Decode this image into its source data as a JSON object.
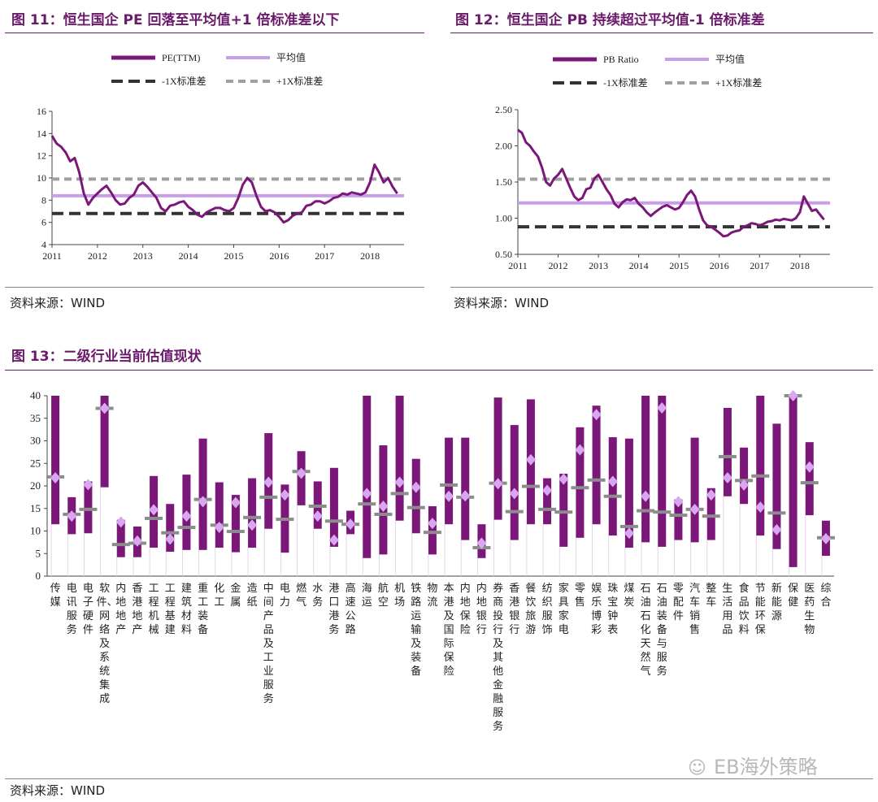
{
  "fig11": {
    "title": "图 11：恒生国企 PE 回落至平均值+1 倍标准差以下",
    "source": "资料来源：WIND",
    "legend": [
      "PE(TTM)",
      "平均值",
      "-1X标准差",
      "+1X标准差"
    ]
  },
  "fig12": {
    "title": "图 12：恒生国企 PB 持续超过平均值-1 倍标准差",
    "source": "资料来源：WIND",
    "legend": [
      "PB Ratio",
      "平均值",
      "-1X标准差",
      "+1X标准差"
    ]
  },
  "fig13": {
    "title": "图 13：二级行业当前估值现状",
    "source": "资料来源：WIND",
    "watermark": "EB海外策略"
  },
  "colors": {
    "accent": "#6b1a6b",
    "series": "#7a1779",
    "mean": "#c79ee8",
    "sd_low": "#333333",
    "sd_high": "#a0a0a0",
    "current": "#d9a6f0",
    "median": "#8c8c8c"
  },
  "chart_data": [
    {
      "type": "line",
      "series": [
        {
          "name": "PE(TTM)",
          "points": [
            [
              2011.0,
              13.8
            ],
            [
              2011.1,
              13.1
            ],
            [
              2011.2,
              12.8
            ],
            [
              2011.3,
              12.3
            ],
            [
              2011.4,
              11.5
            ],
            [
              2011.5,
              11.8
            ],
            [
              2011.6,
              10.5
            ],
            [
              2011.7,
              8.6
            ],
            [
              2011.8,
              7.6
            ],
            [
              2011.9,
              8.2
            ],
            [
              2012.0,
              8.6
            ],
            [
              2012.1,
              9.0
            ],
            [
              2012.2,
              9.3
            ],
            [
              2012.3,
              8.7
            ],
            [
              2012.4,
              8.0
            ],
            [
              2012.5,
              7.6
            ],
            [
              2012.6,
              7.7
            ],
            [
              2012.7,
              8.2
            ],
            [
              2012.8,
              8.5
            ],
            [
              2012.9,
              9.3
            ],
            [
              2013.0,
              9.6
            ],
            [
              2013.1,
              9.2
            ],
            [
              2013.2,
              8.7
            ],
            [
              2013.3,
              8.2
            ],
            [
              2013.4,
              7.3
            ],
            [
              2013.5,
              7.0
            ],
            [
              2013.6,
              7.5
            ],
            [
              2013.7,
              7.6
            ],
            [
              2013.8,
              7.8
            ],
            [
              2013.9,
              7.9
            ],
            [
              2014.0,
              7.4
            ],
            [
              2014.1,
              7.1
            ],
            [
              2014.2,
              6.7
            ],
            [
              2014.3,
              6.5
            ],
            [
              2014.4,
              6.9
            ],
            [
              2014.5,
              7.1
            ],
            [
              2014.6,
              7.3
            ],
            [
              2014.7,
              7.3
            ],
            [
              2014.8,
              7.1
            ],
            [
              2014.9,
              7.0
            ],
            [
              2015.0,
              7.3
            ],
            [
              2015.1,
              8.2
            ],
            [
              2015.2,
              9.4
            ],
            [
              2015.3,
              10.0
            ],
            [
              2015.4,
              9.6
            ],
            [
              2015.5,
              8.4
            ],
            [
              2015.6,
              7.4
            ],
            [
              2015.7,
              7.0
            ],
            [
              2015.8,
              7.1
            ],
            [
              2015.9,
              6.9
            ],
            [
              2016.0,
              6.5
            ],
            [
              2016.1,
              6.0
            ],
            [
              2016.2,
              6.2
            ],
            [
              2016.3,
              6.6
            ],
            [
              2016.4,
              6.8
            ],
            [
              2016.5,
              6.9
            ],
            [
              2016.6,
              7.5
            ],
            [
              2016.7,
              7.6
            ],
            [
              2016.8,
              7.9
            ],
            [
              2016.9,
              7.9
            ],
            [
              2017.0,
              7.7
            ],
            [
              2017.1,
              7.9
            ],
            [
              2017.2,
              8.2
            ],
            [
              2017.3,
              8.3
            ],
            [
              2017.4,
              8.6
            ],
            [
              2017.5,
              8.5
            ],
            [
              2017.6,
              8.7
            ],
            [
              2017.7,
              8.6
            ],
            [
              2017.8,
              8.5
            ],
            [
              2017.9,
              8.7
            ],
            [
              2018.0,
              9.6
            ],
            [
              2018.1,
              11.2
            ],
            [
              2018.2,
              10.5
            ],
            [
              2018.3,
              9.6
            ],
            [
              2018.4,
              10.0
            ],
            [
              2018.5,
              9.2
            ],
            [
              2018.6,
              8.6
            ]
          ]
        }
      ],
      "reference_lines": {
        "mean": 8.4,
        "minus_1sd": 6.8,
        "plus_1sd": 9.9
      },
      "ylim": [
        4,
        16
      ],
      "yticks": [
        4,
        6,
        8,
        10,
        12,
        14,
        16
      ],
      "xlim": [
        2011,
        2018.75
      ],
      "xticks": [
        2011,
        2012,
        2013,
        2014,
        2015,
        2016,
        2017,
        2018
      ],
      "legend": "top"
    },
    {
      "type": "line",
      "series": [
        {
          "name": "PB Ratio",
          "points": [
            [
              2011.0,
              2.22
            ],
            [
              2011.1,
              2.18
            ],
            [
              2011.2,
              2.05
            ],
            [
              2011.3,
              2.0
            ],
            [
              2011.4,
              1.92
            ],
            [
              2011.5,
              1.85
            ],
            [
              2011.6,
              1.7
            ],
            [
              2011.7,
              1.5
            ],
            [
              2011.8,
              1.45
            ],
            [
              2011.9,
              1.55
            ],
            [
              2012.0,
              1.6
            ],
            [
              2012.1,
              1.68
            ],
            [
              2012.2,
              1.55
            ],
            [
              2012.3,
              1.42
            ],
            [
              2012.4,
              1.3
            ],
            [
              2012.5,
              1.25
            ],
            [
              2012.6,
              1.28
            ],
            [
              2012.7,
              1.4
            ],
            [
              2012.8,
              1.42
            ],
            [
              2012.9,
              1.55
            ],
            [
              2013.0,
              1.6
            ],
            [
              2013.1,
              1.5
            ],
            [
              2013.2,
              1.4
            ],
            [
              2013.3,
              1.32
            ],
            [
              2013.4,
              1.2
            ],
            [
              2013.5,
              1.15
            ],
            [
              2013.6,
              1.22
            ],
            [
              2013.7,
              1.26
            ],
            [
              2013.8,
              1.25
            ],
            [
              2013.9,
              1.28
            ],
            [
              2014.0,
              1.2
            ],
            [
              2014.1,
              1.15
            ],
            [
              2014.2,
              1.08
            ],
            [
              2014.3,
              1.03
            ],
            [
              2014.4,
              1.08
            ],
            [
              2014.5,
              1.12
            ],
            [
              2014.6,
              1.16
            ],
            [
              2014.7,
              1.18
            ],
            [
              2014.8,
              1.15
            ],
            [
              2014.9,
              1.12
            ],
            [
              2015.0,
              1.14
            ],
            [
              2015.1,
              1.22
            ],
            [
              2015.2,
              1.32
            ],
            [
              2015.3,
              1.38
            ],
            [
              2015.4,
              1.3
            ],
            [
              2015.5,
              1.12
            ],
            [
              2015.6,
              0.97
            ],
            [
              2015.7,
              0.9
            ],
            [
              2015.8,
              0.88
            ],
            [
              2015.9,
              0.84
            ],
            [
              2016.0,
              0.8
            ],
            [
              2016.1,
              0.75
            ],
            [
              2016.2,
              0.76
            ],
            [
              2016.3,
              0.8
            ],
            [
              2016.4,
              0.82
            ],
            [
              2016.5,
              0.83
            ],
            [
              2016.6,
              0.88
            ],
            [
              2016.7,
              0.9
            ],
            [
              2016.8,
              0.93
            ],
            [
              2016.9,
              0.92
            ],
            [
              2017.0,
              0.9
            ],
            [
              2017.1,
              0.92
            ],
            [
              2017.2,
              0.95
            ],
            [
              2017.3,
              0.96
            ],
            [
              2017.4,
              0.98
            ],
            [
              2017.5,
              0.97
            ],
            [
              2017.6,
              0.99
            ],
            [
              2017.7,
              0.98
            ],
            [
              2017.8,
              0.97
            ],
            [
              2017.9,
              1.0
            ],
            [
              2018.0,
              1.08
            ],
            [
              2018.1,
              1.3
            ],
            [
              2018.2,
              1.2
            ],
            [
              2018.3,
              1.1
            ],
            [
              2018.4,
              1.12
            ],
            [
              2018.5,
              1.05
            ],
            [
              2018.6,
              0.98
            ]
          ]
        }
      ],
      "reference_lines": {
        "mean": 1.21,
        "minus_1sd": 0.88,
        "plus_1sd": 1.54
      },
      "ylim": [
        0.5,
        2.5
      ],
      "yticks": [
        "0.50",
        "1.00",
        "1.50",
        "2.00",
        "2.50"
      ],
      "xlim": [
        2011,
        2018.75
      ],
      "xticks": [
        2011,
        2012,
        2013,
        2014,
        2015,
        2016,
        2017,
        2018
      ],
      "legend": "top"
    },
    {
      "type": "bar",
      "ylim": [
        0,
        40
      ],
      "yticks": [
        0,
        5,
        10,
        15,
        20,
        25,
        30,
        35,
        40
      ],
      "categories": [
        "传媒",
        "电讯服务",
        "电子硬件",
        "软件、网络及系统集成",
        "内地地产",
        "香港地产",
        "工程机械",
        "工程基建",
        "建筑材料",
        "重工装备",
        "化工",
        "金属",
        "造纸",
        "中间产品及工业服务",
        "电力",
        "燃气",
        "水务",
        "港口港务",
        "高速公路",
        "海运",
        "航空",
        "机场",
        "铁路运输及装备",
        "物流",
        "本港及国际保险",
        "内地保险",
        "内地银行",
        "券商投行及其他金融服务",
        "香港银行",
        "餐饮旅游",
        "纺织服饰",
        "家具家电",
        "零售",
        "娱乐博彩",
        "珠宝钟表",
        "煤炭",
        "石油石化天然气",
        "石油装备与服务",
        "零配件",
        "汽车销售",
        "整车",
        "生活用品",
        "食品饮料",
        "节能环保",
        "新能源",
        "保健",
        "医药生物",
        "综合"
      ],
      "low": [
        11.5,
        9.3,
        9.5,
        19.7,
        4.2,
        4.2,
        6.3,
        5.4,
        5.8,
        5.8,
        6.3,
        5.3,
        6.3,
        10.5,
        5.2,
        15.7,
        10.5,
        6.5,
        9.3,
        4.0,
        4.8,
        12.3,
        9.5,
        4.8,
        11.5,
        8.0,
        4.0,
        12.5,
        8.0,
        11.5,
        11.5,
        6.5,
        8.5,
        11.5,
        9.0,
        6.3,
        7.5,
        6.5,
        8.0,
        7.5,
        8.0,
        17.7,
        16.0,
        9.0,
        6.0,
        2.0,
        13.5,
        4.5
      ],
      "high": [
        40,
        17.5,
        21.0,
        40,
        12.5,
        11.0,
        22.2,
        16.0,
        22.5,
        30.5,
        20.8,
        18.0,
        21.7,
        31.7,
        20.3,
        27.7,
        21.0,
        24.0,
        14.5,
        40,
        29.0,
        40,
        26.0,
        15.5,
        30.7,
        30.7,
        11.5,
        39.6,
        33.5,
        39.2,
        21.7,
        22.7,
        33.0,
        37.8,
        30.8,
        30.5,
        40,
        40,
        17.0,
        30.7,
        19.5,
        37.3,
        28.5,
        40,
        33.8,
        40,
        29.7,
        12.3
      ],
      "current": [
        21.8,
        13.3,
        20.3,
        37.2,
        12.0,
        7.8,
        14.7,
        8.2,
        13.3,
        16.5,
        10.8,
        16.3,
        11.3,
        20.8,
        18.0,
        22.8,
        13.3,
        8.0,
        11.5,
        18.3,
        15.5,
        20.8,
        19.7,
        11.7,
        17.7,
        17.8,
        7.3,
        20.5,
        18.3,
        25.8,
        19.0,
        21.5,
        28.0,
        35.8,
        21.0,
        9.5,
        17.7,
        37.3,
        16.5,
        14.8,
        18.0,
        21.8,
        20.2,
        15.3,
        10.3,
        40,
        24.2,
        8.3
      ],
      "median": [
        22.0,
        13.7,
        14.8,
        37.2,
        7.0,
        7.3,
        12.8,
        9.6,
        10.8,
        17.0,
        11.3,
        9.9,
        13.0,
        17.5,
        12.6,
        23.2,
        15.5,
        12.2,
        11.5,
        16.0,
        13.7,
        18.3,
        15.2,
        9.7,
        20.2,
        17.5,
        6.3,
        20.6,
        14.3,
        19.9,
        14.8,
        14.2,
        19.6,
        21.3,
        17.7,
        11.0,
        14.5,
        14.2,
        13.5,
        14.8,
        13.3,
        26.5,
        21.2,
        22.2,
        14.0,
        40,
        20.7,
        8.5
      ]
    }
  ]
}
